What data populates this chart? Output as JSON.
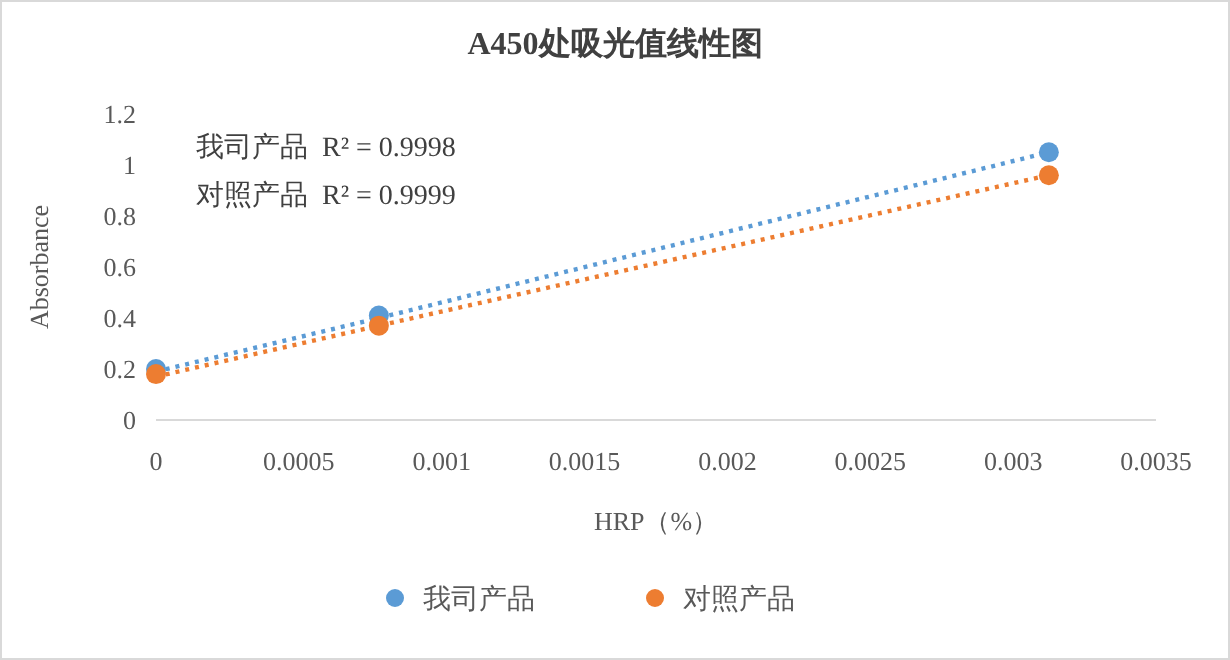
{
  "chart_data": {
    "type": "scatter",
    "title": "A450处吸光值线性图",
    "xlabel": "HRP（%）",
    "ylabel": "Absorbance",
    "x": [
      0,
      0.00078,
      0.003125
    ],
    "series": [
      {
        "name": "我司产品",
        "color": "#5b9bd5",
        "values": [
          0.2,
          0.41,
          1.05
        ],
        "marker": "circle"
      },
      {
        "name": "对照产品",
        "color": "#ed7d31",
        "values": [
          0.18,
          0.37,
          0.96
        ],
        "marker": "circle"
      },
      {
        "type": "line",
        "color": "#5b9bd5",
        "values": [
          0.19,
          0.4,
          1.05
        ],
        "line_style": "dotted",
        "marker": "none"
      },
      {
        "type": "line",
        "color": "#ed7d31",
        "values": [
          0.17,
          0.37,
          0.96
        ],
        "line_style": "dotted",
        "marker": "none"
      }
    ],
    "xlim": [
      0,
      0.0035
    ],
    "xticks": [
      0,
      0.0005,
      0.001,
      0.0015,
      0.002,
      0.0025,
      0.003,
      0.0035
    ],
    "ylim": [
      0,
      1.2
    ],
    "yticks": [
      0,
      0.2,
      0.4,
      0.6,
      0.8,
      1,
      1.2
    ],
    "annotations": [
      "我司产品  R² = 0.9998",
      "对照产品  R² = 0.9999"
    ],
    "grid": false,
    "legend": "bottom"
  }
}
